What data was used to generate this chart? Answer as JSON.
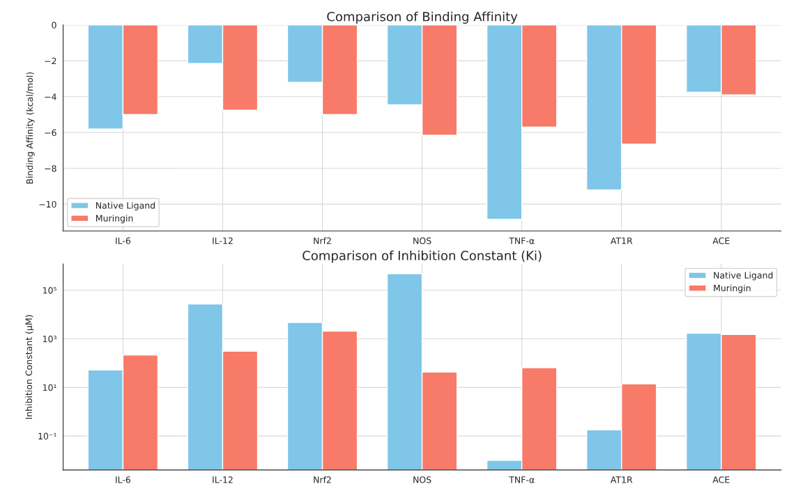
{
  "chart_data": [
    {
      "type": "bar",
      "title": "Comparison of Binding Affinity",
      "ylabel": "Binding Affinity (kcal/mol)",
      "categories": [
        "IL-6",
        "IL-12",
        "Nrf2",
        "NOS",
        "TNF-α",
        "AT1R",
        "ACE"
      ],
      "series": [
        {
          "name": "Native Ligand",
          "color": "#7fc6e8",
          "values": [
            -5.8,
            -2.15,
            -3.2,
            -4.45,
            -10.85,
            -9.2,
            -3.75
          ]
        },
        {
          "name": "Muringin",
          "color": "#f87a68",
          "values": [
            -5.0,
            -4.75,
            -5.0,
            -6.15,
            -5.7,
            -6.65,
            -3.9
          ]
        }
      ],
      "ylim": [
        -11.5,
        0
      ],
      "yticks": [
        {
          "value": -10,
          "label": "−10"
        },
        {
          "value": -8,
          "label": "−8"
        },
        {
          "value": -6,
          "label": "−6"
        },
        {
          "value": -4,
          "label": "−4"
        },
        {
          "value": -2,
          "label": "−2"
        },
        0
      ],
      "grid": true,
      "legend": "bottom left"
    },
    {
      "type": "bar",
      "title": "Comparison of Inhibition Constant (Ki)",
      "ylabel": "Inhibition Constant (μM)",
      "categories": [
        "IL-6",
        "IL-12",
        "Nrf2",
        "NOS",
        "TNF-α",
        "AT1R",
        "ACE"
      ],
      "series": [
        {
          "name": "Native Ligand",
          "color": "#7fc6e8",
          "values": [
            52,
            27000,
            4700,
            480000,
            0.01,
            0.18,
            1700
          ]
        },
        {
          "name": "Muringin",
          "color": "#f87a68",
          "values": [
            215,
            310,
            2050,
            43,
            65,
            14,
            1500
          ]
        }
      ],
      "log": "y",
      "ylim": [
        0.004,
        1200000
      ],
      "yticks": [
        {
          "value": 0.1,
          "label": "10⁻¹"
        },
        {
          "value": 10,
          "label": "10¹"
        },
        {
          "value": 1000,
          "label": "10³"
        },
        {
          "value": 100000,
          "label": "10⁵"
        }
      ],
      "grid": true,
      "legend": "top right"
    }
  ]
}
